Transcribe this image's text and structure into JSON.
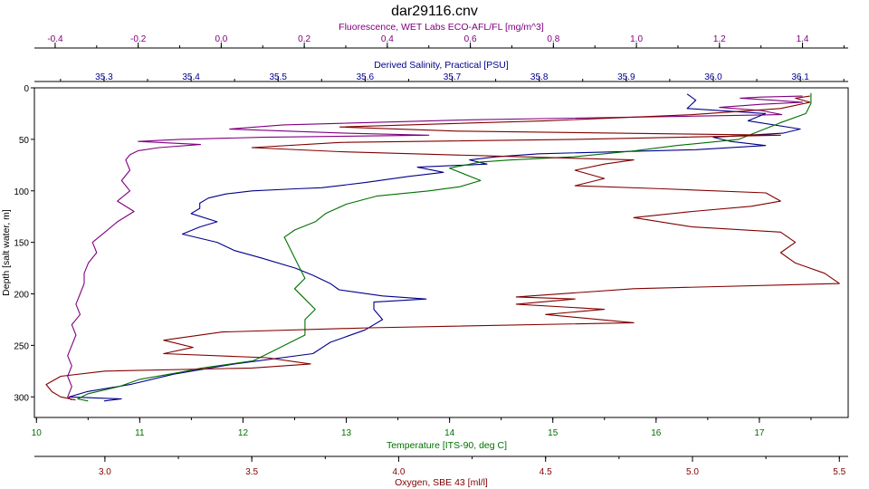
{
  "chart_data": {
    "type": "line",
    "title": "dar29116.cnv",
    "y_axis": {
      "label": "Depth [salt water, m]",
      "ticks": [
        0,
        50,
        100,
        150,
        200,
        250,
        300
      ],
      "range": [
        0,
        320
      ],
      "inverted": true
    },
    "x_axes": [
      {
        "id": "fluorescence",
        "label": "Fluorescence, WET Labs ECO-AFL/FL [mg/m^3]",
        "position": "top-outer",
        "color": "#800080",
        "range": [
          -0.45,
          1.51
        ],
        "ticks": [
          "-0.4",
          "-0.2",
          "0.0",
          "0.2",
          "0.4",
          "0.6",
          "0.8",
          "1.0",
          "1.2",
          "1.4"
        ]
      },
      {
        "id": "salinity",
        "label": "Derived Salinity, Practical [PSU]",
        "position": "top-inner",
        "color": "#00008b",
        "range": [
          35.22,
          36.155
        ],
        "ticks": [
          "35.3",
          "35.4",
          "35.5",
          "35.6",
          "35.7",
          "35.8",
          "35.9",
          "36.0",
          "36.1"
        ]
      },
      {
        "id": "temperature",
        "label": "Temperature [ITS-90, deg C]",
        "position": "bottom-inner",
        "color": "#007000",
        "range": [
          9.98,
          17.86
        ],
        "ticks": [
          "10",
          "11",
          "12",
          "13",
          "14",
          "15",
          "16",
          "17"
        ]
      },
      {
        "id": "oxygen",
        "label": "Oxygen, SBE 43 [ml/l]",
        "position": "bottom-outer",
        "color": "#800000",
        "range": [
          2.76,
          5.53
        ],
        "ticks": [
          "3.0",
          "3.5",
          "4.0",
          "4.5",
          "5.0",
          "5.5"
        ]
      }
    ],
    "series": [
      {
        "axis": "fluorescence",
        "color": "#800080",
        "points": [
          [
            1.4,
            8
          ],
          [
            1.3,
            9
          ],
          [
            1.25,
            10
          ],
          [
            1.33,
            12
          ],
          [
            1.4,
            14
          ],
          [
            1.3,
            16
          ],
          [
            1.2,
            19
          ],
          [
            1.3,
            22
          ],
          [
            1.35,
            26
          ],
          [
            0.6,
            31
          ],
          [
            0.15,
            36
          ],
          [
            0.02,
            40
          ],
          [
            0.3,
            44
          ],
          [
            0.5,
            46
          ],
          [
            0.1,
            48
          ],
          [
            -0.1,
            50
          ],
          [
            -0.2,
            52
          ],
          [
            -0.05,
            55
          ],
          [
            -0.15,
            58
          ],
          [
            -0.2,
            61
          ],
          [
            -0.22,
            65
          ],
          [
            -0.23,
            70
          ],
          [
            -0.22,
            80
          ],
          [
            -0.24,
            90
          ],
          [
            -0.22,
            100
          ],
          [
            -0.25,
            110
          ],
          [
            -0.21,
            120
          ],
          [
            -0.25,
            130
          ],
          [
            -0.28,
            140
          ],
          [
            -0.31,
            150
          ],
          [
            -0.3,
            160
          ],
          [
            -0.32,
            170
          ],
          [
            -0.33,
            180
          ],
          [
            -0.33,
            190
          ],
          [
            -0.34,
            200
          ],
          [
            -0.35,
            210
          ],
          [
            -0.34,
            220
          ],
          [
            -0.36,
            230
          ],
          [
            -0.35,
            240
          ],
          [
            -0.36,
            250
          ],
          [
            -0.37,
            260
          ],
          [
            -0.36,
            270
          ],
          [
            -0.37,
            280
          ],
          [
            -0.36,
            290
          ],
          [
            -0.37,
            300
          ],
          [
            -0.36,
            303
          ]
        ]
      },
      {
        "axis": "salinity",
        "color": "#00008b",
        "points": [
          [
            35.97,
            6
          ],
          [
            35.98,
            12
          ],
          [
            35.97,
            20
          ],
          [
            36.06,
            25
          ],
          [
            36.04,
            32
          ],
          [
            36.1,
            40
          ],
          [
            36.08,
            44
          ],
          [
            36.0,
            48
          ],
          [
            36.02,
            52
          ],
          [
            36.06,
            56
          ],
          [
            35.98,
            60
          ],
          [
            35.8,
            64
          ],
          [
            35.75,
            67
          ],
          [
            35.72,
            70
          ],
          [
            35.74,
            74
          ],
          [
            35.66,
            77
          ],
          [
            35.69,
            82
          ],
          [
            35.65,
            86
          ],
          [
            35.6,
            92
          ],
          [
            35.55,
            97
          ],
          [
            35.52,
            98
          ],
          [
            35.47,
            100
          ],
          [
            35.44,
            103
          ],
          [
            35.42,
            107
          ],
          [
            35.41,
            112
          ],
          [
            35.41,
            117
          ],
          [
            35.4,
            122
          ],
          [
            35.43,
            130
          ],
          [
            35.41,
            135
          ],
          [
            35.39,
            142
          ],
          [
            35.43,
            150
          ],
          [
            35.45,
            158
          ],
          [
            35.48,
            165
          ],
          [
            35.52,
            175
          ],
          [
            35.54,
            182
          ],
          [
            35.56,
            190
          ],
          [
            35.57,
            196
          ],
          [
            35.62,
            202
          ],
          [
            35.67,
            205
          ],
          [
            35.61,
            208
          ],
          [
            35.61,
            215
          ],
          [
            35.62,
            225
          ],
          [
            35.6,
            235
          ],
          [
            35.56,
            247
          ],
          [
            35.54,
            258
          ],
          [
            35.45,
            268
          ],
          [
            35.38,
            278
          ],
          [
            35.33,
            288
          ],
          [
            35.28,
            295
          ],
          [
            35.26,
            300
          ],
          [
            35.32,
            302
          ],
          [
            35.3,
            304
          ]
        ]
      },
      {
        "axis": "temperature",
        "color": "#007000",
        "points": [
          [
            17.5,
            5
          ],
          [
            17.5,
            15
          ],
          [
            17.45,
            25
          ],
          [
            17.2,
            34
          ],
          [
            17.0,
            42
          ],
          [
            16.8,
            50
          ],
          [
            16.2,
            56
          ],
          [
            15.8,
            61
          ],
          [
            15.5,
            64
          ],
          [
            15.2,
            67
          ],
          [
            14.6,
            70
          ],
          [
            14.3,
            72
          ],
          [
            14.0,
            78
          ],
          [
            14.3,
            90
          ],
          [
            14.1,
            96
          ],
          [
            13.8,
            100
          ],
          [
            13.3,
            105
          ],
          [
            13.0,
            113
          ],
          [
            12.8,
            122
          ],
          [
            12.7,
            130
          ],
          [
            12.5,
            138
          ],
          [
            12.4,
            145
          ],
          [
            12.45,
            155
          ],
          [
            12.5,
            165
          ],
          [
            12.55,
            175
          ],
          [
            12.6,
            185
          ],
          [
            12.5,
            195
          ],
          [
            12.6,
            205
          ],
          [
            12.7,
            215
          ],
          [
            12.6,
            225
          ],
          [
            12.6,
            240
          ],
          [
            12.3,
            255
          ],
          [
            12.1,
            265
          ],
          [
            11.6,
            272
          ],
          [
            11.4,
            276
          ],
          [
            11.0,
            283
          ],
          [
            10.8,
            290
          ],
          [
            10.5,
            297
          ],
          [
            10.4,
            302
          ],
          [
            10.5,
            304
          ]
        ]
      },
      {
        "axis": "oxygen",
        "color": "#800000",
        "points": [
          [
            5.4,
            8
          ],
          [
            5.35,
            10
          ],
          [
            5.4,
            14
          ],
          [
            5.3,
            20
          ],
          [
            5.0,
            26
          ],
          [
            4.5,
            32
          ],
          [
            3.8,
            38
          ],
          [
            4.2,
            42
          ],
          [
            5.3,
            46
          ],
          [
            4.6,
            50
          ],
          [
            3.8,
            53
          ],
          [
            3.5,
            58
          ],
          [
            3.8,
            62
          ],
          [
            4.3,
            66
          ],
          [
            4.8,
            70
          ],
          [
            4.7,
            74
          ],
          [
            4.6,
            80
          ],
          [
            4.7,
            88
          ],
          [
            4.6,
            95
          ],
          [
            4.9,
            98
          ],
          [
            5.25,
            102
          ],
          [
            5.3,
            110
          ],
          [
            5.2,
            115
          ],
          [
            5.0,
            120
          ],
          [
            4.8,
            126
          ],
          [
            5.0,
            135
          ],
          [
            5.3,
            140
          ],
          [
            5.35,
            150
          ],
          [
            5.3,
            160
          ],
          [
            5.35,
            170
          ],
          [
            5.45,
            180
          ],
          [
            5.5,
            190
          ],
          [
            4.8,
            195
          ],
          [
            4.4,
            203
          ],
          [
            4.6,
            205
          ],
          [
            4.4,
            210
          ],
          [
            4.7,
            215
          ],
          [
            4.5,
            220
          ],
          [
            4.8,
            228
          ],
          [
            3.9,
            233
          ],
          [
            3.4,
            237
          ],
          [
            3.2,
            245
          ],
          [
            3.3,
            252
          ],
          [
            3.2,
            258
          ],
          [
            3.55,
            262
          ],
          [
            3.7,
            268
          ],
          [
            3.5,
            272
          ],
          [
            3.0,
            275
          ],
          [
            2.85,
            280
          ],
          [
            2.8,
            288
          ],
          [
            2.82,
            295
          ],
          [
            2.85,
            300
          ],
          [
            2.9,
            303
          ]
        ]
      }
    ]
  }
}
